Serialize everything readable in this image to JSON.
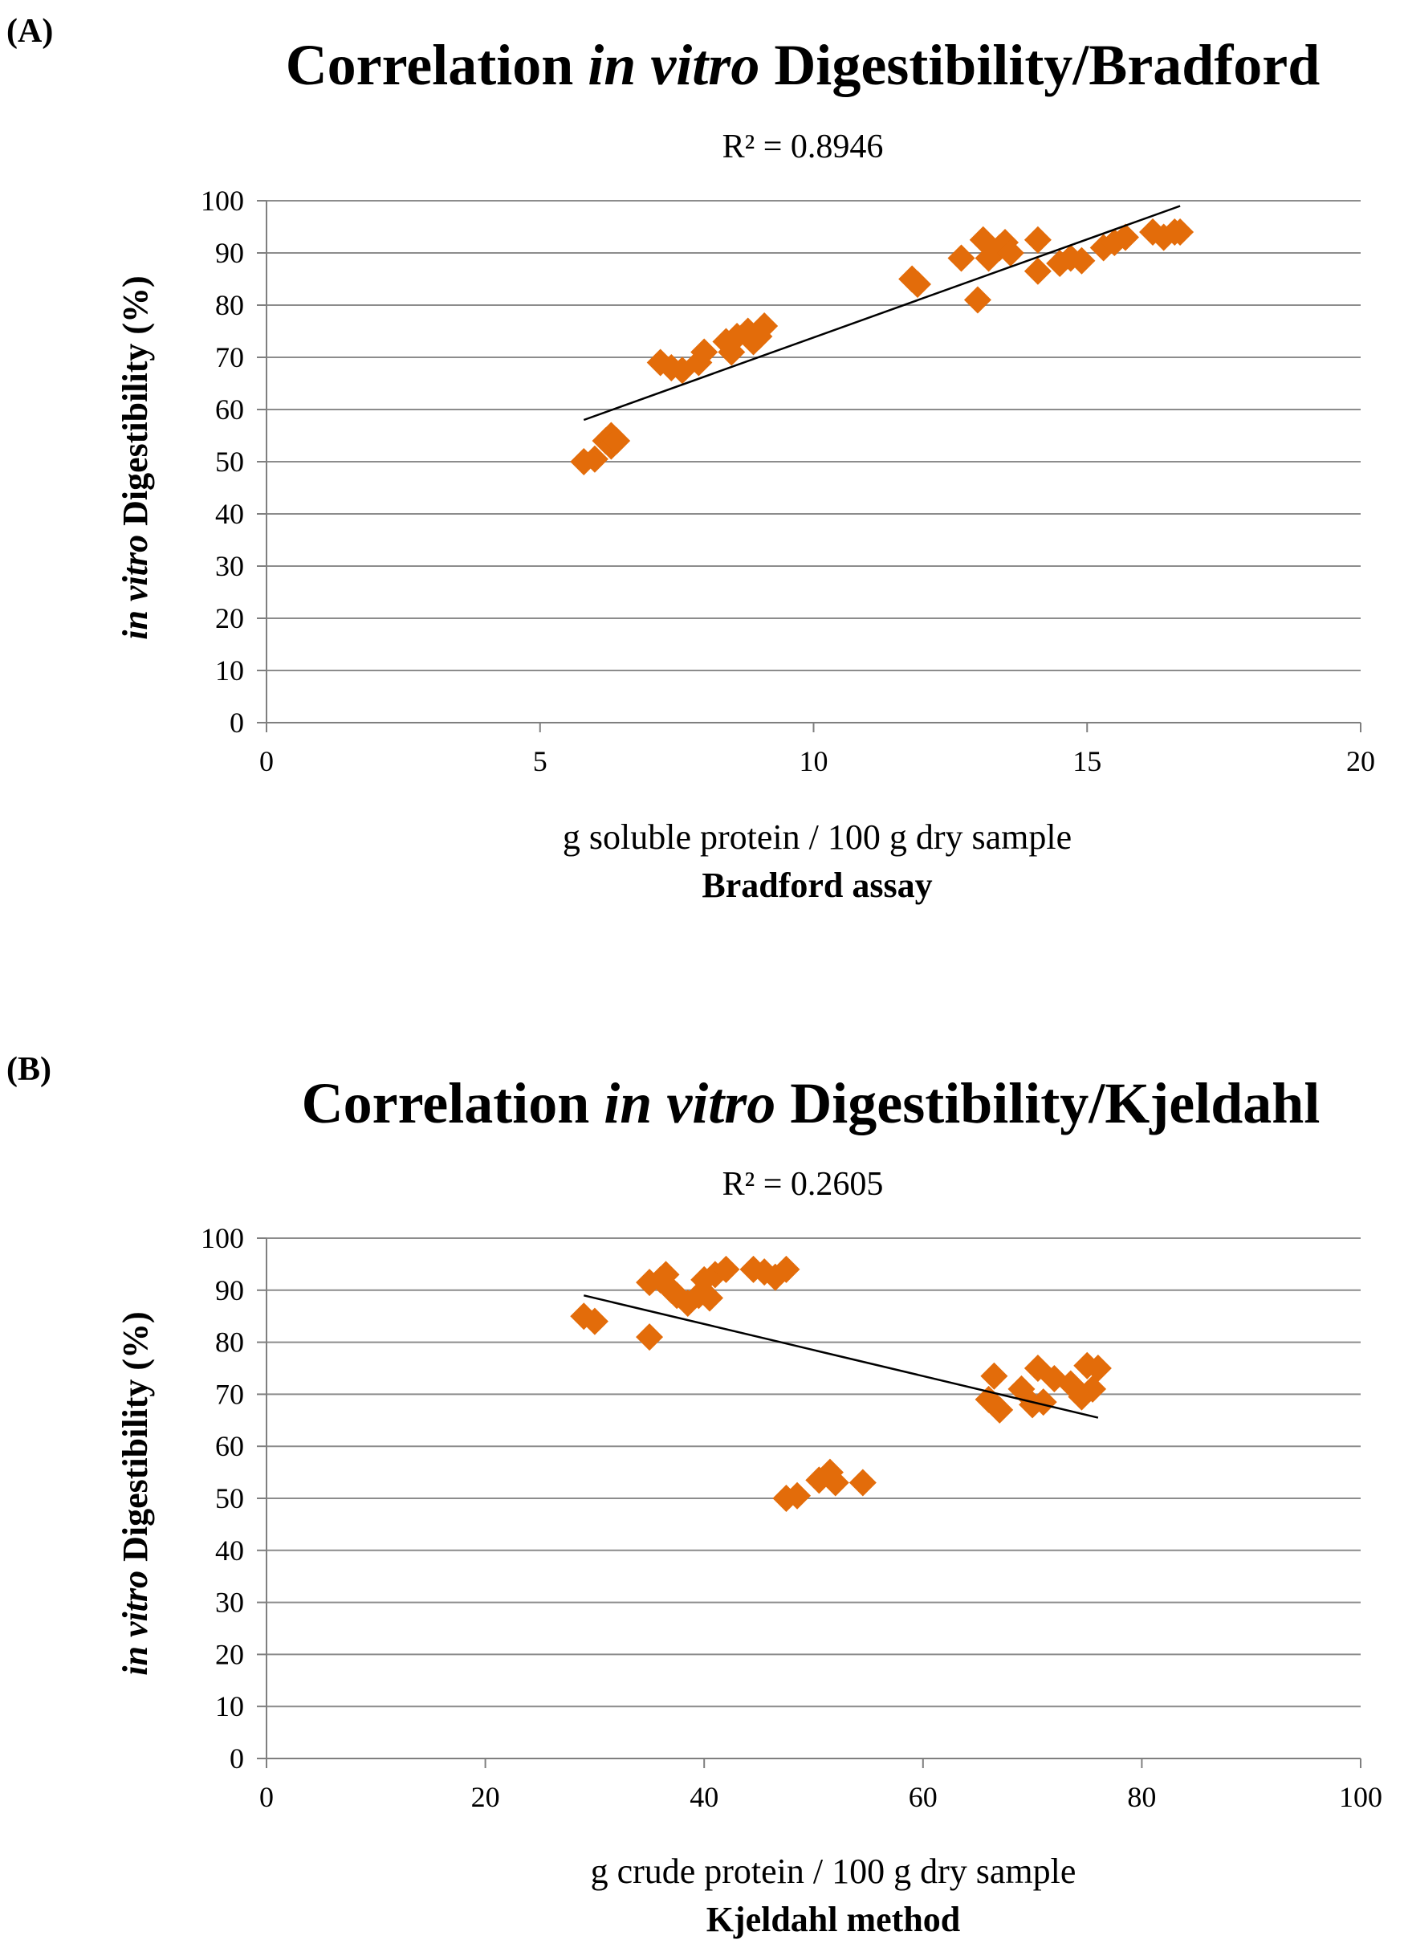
{
  "chart_data": [
    {
      "type": "scatter",
      "panel": "(A)",
      "title_normal_1": "Correlation ",
      "title_italic": "in vitro",
      "title_normal_2": " Digestibility/Bradford",
      "r2_label": "R² = 0.8946",
      "xlabel": "g soluble protein / 100 g dry sample",
      "xlabel_sub": "Bradford assay",
      "ylabel_italic": "in vitro",
      "ylabel_rest": " Digestibility (%)",
      "xlim": [
        0,
        20
      ],
      "ylim": [
        0,
        100
      ],
      "xticks": [
        0,
        5,
        10,
        15,
        20
      ],
      "yticks": [
        0,
        10,
        20,
        30,
        40,
        50,
        60,
        70,
        80,
        90,
        100
      ],
      "marker_color": "#E36C0A",
      "trendline": {
        "x": [
          5.8,
          16.7
        ],
        "y": [
          58,
          99
        ]
      },
      "points": [
        [
          5.8,
          50
        ],
        [
          6.0,
          50.5
        ],
        [
          6.2,
          54
        ],
        [
          6.3,
          55
        ],
        [
          6.3,
          53
        ],
        [
          6.4,
          54
        ],
        [
          7.2,
          69
        ],
        [
          7.4,
          68
        ],
        [
          7.6,
          67.5
        ],
        [
          7.9,
          69
        ],
        [
          8.0,
          71
        ],
        [
          8.4,
          73
        ],
        [
          8.5,
          71
        ],
        [
          8.6,
          74
        ],
        [
          8.8,
          75
        ],
        [
          8.9,
          73
        ],
        [
          9.0,
          74
        ],
        [
          9.1,
          76
        ],
        [
          11.8,
          85
        ],
        [
          11.9,
          84
        ],
        [
          12.7,
          89
        ],
        [
          13.0,
          81
        ],
        [
          13.1,
          92.5
        ],
        [
          13.2,
          89
        ],
        [
          13.4,
          91
        ],
        [
          13.5,
          92
        ],
        [
          13.6,
          90
        ],
        [
          14.1,
          86.5
        ],
        [
          14.1,
          92.5
        ],
        [
          14.5,
          88
        ],
        [
          14.7,
          89
        ],
        [
          14.9,
          88.5
        ],
        [
          15.3,
          91
        ],
        [
          15.5,
          92
        ],
        [
          15.7,
          93
        ],
        [
          16.2,
          94
        ],
        [
          16.4,
          93
        ],
        [
          16.6,
          94
        ],
        [
          16.7,
          94
        ]
      ]
    },
    {
      "type": "scatter",
      "panel": "(B)",
      "title_normal_1": "Correlation ",
      "title_italic": "in vitro",
      "title_normal_2": " Digestibility/Kjeldahl",
      "r2_label": "R² = 0.2605",
      "xlabel": "g crude protein / 100 g dry sample",
      "xlabel_sub": "Kjeldahl method",
      "ylabel_italic": "in vitro",
      "ylabel_rest": " Digestibility (%)",
      "xlim": [
        0,
        100
      ],
      "ylim": [
        0,
        100
      ],
      "xticks": [
        0,
        20,
        40,
        60,
        80,
        100
      ],
      "yticks": [
        0,
        10,
        20,
        30,
        40,
        50,
        60,
        70,
        80,
        90,
        100
      ],
      "marker_color": "#E36C0A",
      "trendline": {
        "x": [
          29,
          76
        ],
        "y": [
          89,
          65.5
        ]
      },
      "points": [
        [
          29,
          85
        ],
        [
          30,
          84
        ],
        [
          35,
          81
        ],
        [
          35,
          91.5
        ],
        [
          36,
          92
        ],
        [
          36.5,
          93
        ],
        [
          37,
          90
        ],
        [
          37.5,
          89
        ],
        [
          38.5,
          87.5
        ],
        [
          39.5,
          89
        ],
        [
          40,
          92
        ],
        [
          40.5,
          88.5
        ],
        [
          41,
          93
        ],
        [
          42,
          94
        ],
        [
          44.5,
          94
        ],
        [
          45.5,
          93.5
        ],
        [
          46.5,
          92.5
        ],
        [
          47.5,
          94
        ],
        [
          47.5,
          50
        ],
        [
          48.5,
          50.5
        ],
        [
          50.5,
          53.5
        ],
        [
          51.5,
          55
        ],
        [
          52,
          53
        ],
        [
          54.5,
          53
        ],
        [
          66,
          69
        ],
        [
          66.5,
          73.5
        ],
        [
          67,
          67
        ],
        [
          69,
          71
        ],
        [
          70,
          68
        ],
        [
          70.5,
          75
        ],
        [
          71,
          68.5
        ],
        [
          72,
          73
        ],
        [
          73.5,
          72
        ],
        [
          74.5,
          69.5
        ],
        [
          75,
          75.5
        ],
        [
          75.5,
          71
        ],
        [
          76,
          75
        ]
      ]
    }
  ]
}
